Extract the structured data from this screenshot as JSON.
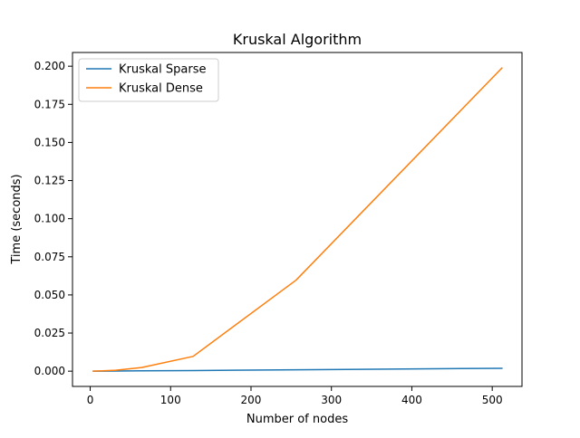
{
  "chart_data": {
    "type": "line",
    "title": "Kruskal Algorithm",
    "xlabel": "Number of nodes",
    "ylabel": "Time (seconds)",
    "xlim": [
      -22,
      537
    ],
    "ylim": [
      -0.01,
      0.209
    ],
    "xticks": [
      0,
      100,
      200,
      300,
      400,
      500
    ],
    "xtick_labels": [
      "0",
      "100",
      "200",
      "300",
      "400",
      "500"
    ],
    "yticks": [
      0.0,
      0.025,
      0.05,
      0.075,
      0.1,
      0.125,
      0.15,
      0.175,
      0.2
    ],
    "ytick_labels": [
      "0.000",
      "0.025",
      "0.050",
      "0.075",
      "0.100",
      "0.125",
      "0.150",
      "0.175",
      "0.200"
    ],
    "grid": false,
    "legend_position": "top-left",
    "series": [
      {
        "name": "Kruskal Sparse",
        "color": "#1f77b4",
        "x": [
          4,
          8,
          16,
          32,
          64,
          128,
          256,
          512
        ],
        "y": [
          0.0,
          0.0,
          0.0,
          0.0001,
          0.0002,
          0.0004,
          0.0009,
          0.0019
        ]
      },
      {
        "name": "Kruskal Dense",
        "color": "#ff7f0e",
        "x": [
          4,
          8,
          16,
          32,
          64,
          128,
          256,
          512
        ],
        "y": [
          0.0,
          0.0001,
          0.0002,
          0.0006,
          0.0024,
          0.0097,
          0.0597,
          0.1988
        ]
      }
    ]
  }
}
